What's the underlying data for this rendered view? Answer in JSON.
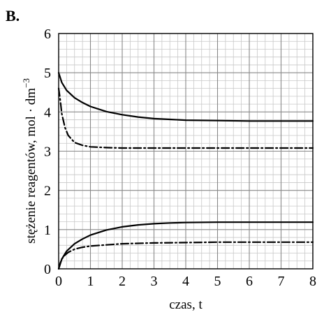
{
  "panel_label": "B.",
  "chart_data": {
    "type": "line",
    "title": "",
    "xlabel": "czas, t",
    "ylabel": "stężenie reagentów, mol · dm",
    "ylabel_exponent": "−3",
    "xlim": [
      0,
      8
    ],
    "ylim": [
      0,
      6
    ],
    "x_ticks": [
      "0",
      "1",
      "2",
      "3",
      "4",
      "5",
      "6",
      "7",
      "8"
    ],
    "y_ticks": [
      "0",
      "1",
      "2",
      "3",
      "4",
      "5",
      "6"
    ],
    "grid": true,
    "legend": "none",
    "series": [
      {
        "style": "solid",
        "x": [
          0,
          0.1,
          0.25,
          0.5,
          0.75,
          1,
          1.5,
          2,
          2.5,
          3,
          3.5,
          4,
          5,
          6,
          7,
          8
        ],
        "y": [
          5.0,
          4.75,
          4.55,
          4.36,
          4.24,
          4.14,
          4.01,
          3.93,
          3.87,
          3.83,
          3.81,
          3.79,
          3.78,
          3.77,
          3.77,
          3.77
        ]
      },
      {
        "style": "dashdot",
        "x": [
          0,
          0.05,
          0.1,
          0.2,
          0.3,
          0.5,
          0.75,
          1,
          1.5,
          2,
          3,
          4,
          5,
          6,
          7,
          8
        ],
        "y": [
          4.6,
          4.3,
          3.95,
          3.6,
          3.4,
          3.22,
          3.15,
          3.11,
          3.09,
          3.08,
          3.08,
          3.08,
          3.08,
          3.08,
          3.08,
          3.08
        ]
      },
      {
        "style": "solid",
        "x": [
          0,
          0.1,
          0.25,
          0.5,
          0.75,
          1,
          1.5,
          2,
          2.5,
          3,
          3.5,
          4,
          5,
          6,
          7,
          8
        ],
        "y": [
          0,
          0.25,
          0.45,
          0.64,
          0.76,
          0.86,
          0.99,
          1.07,
          1.12,
          1.15,
          1.17,
          1.18,
          1.19,
          1.19,
          1.19,
          1.19
        ]
      },
      {
        "style": "dashdot",
        "x": [
          0,
          0.05,
          0.1,
          0.2,
          0.3,
          0.5,
          0.75,
          1,
          1.5,
          2,
          3,
          4,
          5,
          6,
          7,
          8
        ],
        "y": [
          0,
          0.15,
          0.25,
          0.35,
          0.42,
          0.5,
          0.55,
          0.58,
          0.61,
          0.64,
          0.66,
          0.67,
          0.68,
          0.68,
          0.68,
          0.68
        ]
      }
    ]
  }
}
